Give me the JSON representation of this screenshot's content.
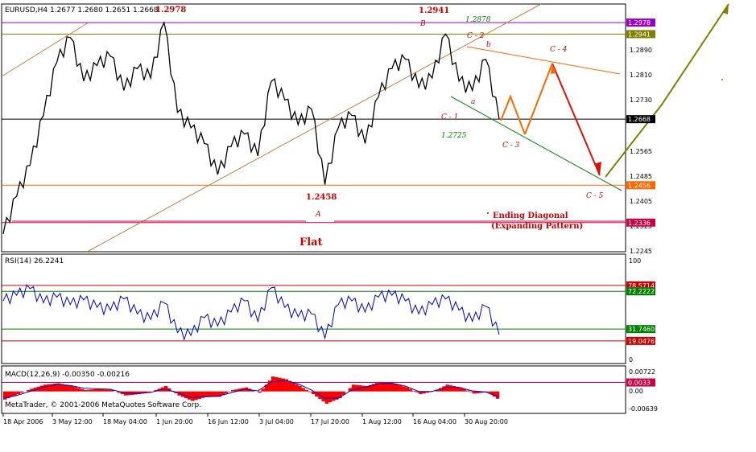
{
  "chart_data": {
    "type": "line",
    "header": "EURUSD,H4  1.2677 1.2680 1.2651 1.2668",
    "rsi_label": "RSI(14) 26.2241",
    "macd_label": "MACD(12,26,9) -0.00350 -0.00216",
    "copyright": "MetaTrader, © 2001-2006 MetaQuotes Software Corp.",
    "price_axis": {
      "ylim": [
        1.2245,
        1.3035
      ],
      "ticks": [
        "1.2890",
        "1.2810",
        "1.2730",
        "1.2565",
        "1.2485",
        "1.2405",
        "1.2325",
        "1.2245"
      ],
      "tick_values": [
        1.289,
        1.281,
        1.273,
        1.2565,
        1.2485,
        1.2405,
        1.2325,
        1.2245
      ],
      "levels": [
        {
          "label": "1.2978",
          "value": 1.2978,
          "color": "#9900cc"
        },
        {
          "label": "1.2941",
          "value": 1.2941,
          "color": "#808000"
        },
        {
          "label": "1.2668",
          "value": 1.2668,
          "color": "#000000"
        },
        {
          "label": "1.2456",
          "value": 1.2456,
          "color": "#ff6600"
        },
        {
          "label": "1.2336",
          "value": 1.2336,
          "color": "#cc0044"
        }
      ]
    },
    "x_ticks": [
      "18 Apr 2006",
      "3 May 12:00",
      "18 May 04:00",
      "1 Jun 20:00",
      "16 Jun 12:00",
      "3 Jul 04:00",
      "17 Jul 20:00",
      "1 Aug 12:00",
      "16 Aug 04:00",
      "30 Aug 20:00"
    ],
    "price_series": {
      "x": [
        "18 Apr",
        "21 Apr",
        "25 Apr",
        "28 Apr",
        "3 May",
        "6 May",
        "10 May",
        "13 May",
        "18 May",
        "22 May",
        "25 May",
        "29 May",
        "1 Jun",
        "5 Jun",
        "8 Jun",
        "12 Jun",
        "16 Jun",
        "20 Jun",
        "23 Jun",
        "27 Jun",
        "3 Jul",
        "6 Jul",
        "10 Jul",
        "13 Jul",
        "17 Jul",
        "20 Jul",
        "24 Jul",
        "27 Jul",
        "1 Aug",
        "4 Aug",
        "8 Aug",
        "11 Aug",
        "16 Aug",
        "19 Aug",
        "23 Aug",
        "26 Aug",
        "30 Aug",
        "2 Sep"
      ],
      "values": [
        1.23,
        1.242,
        1.252,
        1.268,
        1.285,
        1.293,
        1.279,
        1.284,
        1.287,
        1.276,
        1.283,
        1.28,
        1.2978,
        1.269,
        1.264,
        1.259,
        1.249,
        1.258,
        1.262,
        1.255,
        1.279,
        1.273,
        1.265,
        1.27,
        1.2458,
        1.264,
        1.268,
        1.259,
        1.274,
        1.283,
        1.286,
        1.277,
        1.28,
        1.2941,
        1.279,
        1.276,
        1.286,
        1.2668
      ]
    },
    "rsi": {
      "scale": [
        "100",
        "0"
      ],
      "ylim": [
        0,
        100
      ],
      "levels": [
        {
          "label": "78.5714",
          "value": 78.5714,
          "color": "#cc0000"
        },
        {
          "label": "72.2222",
          "value": 72.2222,
          "color": "#008000"
        },
        {
          "label": "31.7460",
          "value": 31.746,
          "color": "#008000"
        },
        {
          "label": "19.0476",
          "value": 19.0476,
          "color": "#cc0000"
        }
      ],
      "values": [
        62,
        68,
        75,
        60,
        66,
        58,
        63,
        55,
        52,
        64,
        48,
        42,
        60,
        28,
        25,
        44,
        35,
        50,
        62,
        40,
        76,
        55,
        45,
        48,
        22,
        58,
        62,
        50,
        66,
        68,
        62,
        48,
        58,
        64,
        52,
        40,
        56,
        26
      ]
    },
    "macd": {
      "scale": [
        "0.00722",
        "0.00",
        "-0.00639"
      ],
      "ylim": [
        -0.0075,
        0.0085
      ],
      "level": {
        "label": "0.0033",
        "value": 0.0033,
        "color": "#cc0044"
      },
      "values": [
        -0.003,
        -0.001,
        0.001,
        0.0025,
        0.003,
        0.002,
        0.0005,
        0.001,
        0.0005,
        -0.0015,
        -0.001,
        0.0,
        0.002,
        -0.0015,
        -0.0035,
        -0.002,
        -0.002,
        0.0005,
        0.0015,
        -0.0005,
        0.0055,
        0.0045,
        0.002,
        -0.001,
        -0.0045,
        -0.0025,
        0.0025,
        0.002,
        0.0035,
        0.003,
        0.0015,
        -0.001,
        0.0,
        0.0025,
        0.0015,
        -0.0008,
        -0.0003,
        -0.0035
      ],
      "signal": [
        -0.0025,
        -0.0015,
        0.0,
        0.0015,
        0.0025,
        0.0022,
        0.0012,
        0.001,
        0.0008,
        -0.0005,
        -0.0008,
        -0.0004,
        0.001,
        -0.0005,
        -0.0022,
        -0.002,
        -0.0018,
        -0.0005,
        0.0008,
        0.0002,
        0.0035,
        0.004,
        0.0028,
        0.0005,
        -0.0025,
        -0.0025,
        0.0005,
        0.0015,
        0.0028,
        0.003,
        0.002,
        0.0,
        0.0,
        0.0015,
        0.0015,
        0.0002,
        -0.0002,
        -0.0021
      ]
    },
    "annotations": [
      {
        "text": "1.2978",
        "style": "bold-red"
      },
      {
        "text": "1.2941",
        "style": "bold-red"
      },
      {
        "text": "B",
        "style": "italic-red"
      },
      {
        "text": "1.2878",
        "style": "italic-green"
      },
      {
        "text": "C - 2",
        "style": "italic-red"
      },
      {
        "text": "b",
        "style": "italic-red"
      },
      {
        "text": "C - 4",
        "style": "italic-red"
      },
      {
        "text": "a",
        "style": "italic-red"
      },
      {
        "text": "C - 1",
        "style": "italic-red"
      },
      {
        "text": "1.2725",
        "style": "italic-green"
      },
      {
        "text": "C - 3",
        "style": "italic-red"
      },
      {
        "text": "1.2458",
        "style": "bold-red"
      },
      {
        "text": "A",
        "style": "italic-red"
      },
      {
        "text": "C - 5",
        "style": "italic-red"
      },
      {
        "text": "Flat",
        "style": "bold-red-large"
      },
      {
        "text": "Ending    Diagonal",
        "style": "bold-red"
      },
      {
        "text": "(Expanding Pattern)",
        "style": "bold-red"
      }
    ]
  }
}
